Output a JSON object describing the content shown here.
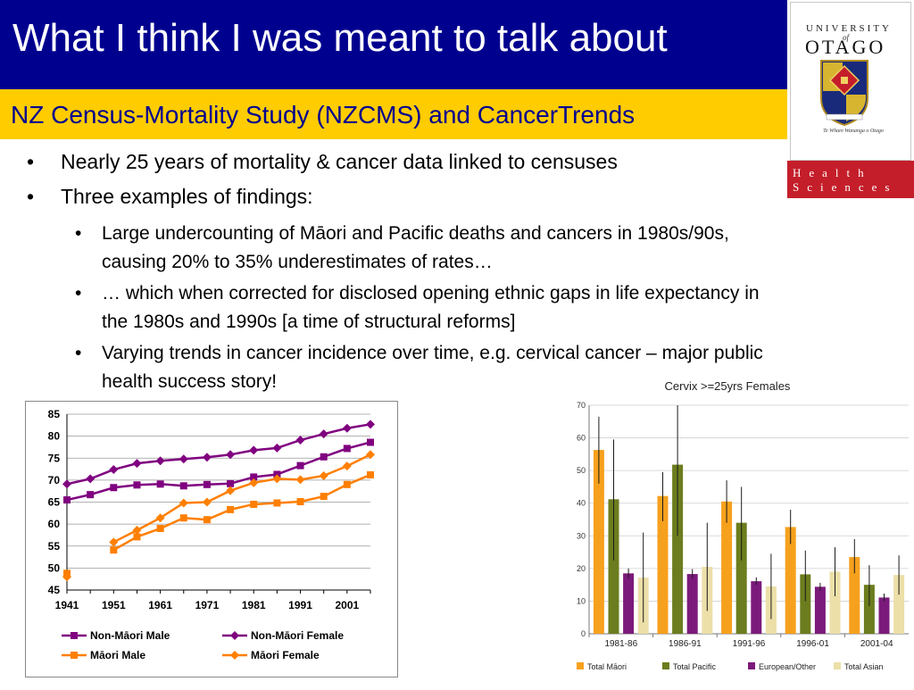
{
  "slide": {
    "title": "What I think I was meant to talk about",
    "subtitle": "NZ Census-Mortality Study (NZCMS) and CancerTrends",
    "bullets": [
      "Nearly 25 years of mortality & cancer data linked to censuses",
      "Three examples of findings:"
    ],
    "sub_bullets": [
      "Large undercounting of Māori and Pacific deaths and cancers in 1980s/90s, causing 20% to 35% underestimates of rates…",
      "… which when corrected for disclosed opening ethnic gaps in life expectancy in the 1980s and 1990s [a time of structural reforms]",
      "Varying trends in cancer incidence over time, e.g. cervical cancer – major public health success story!"
    ],
    "bullet_glyph": "•"
  },
  "logo": {
    "university": "UNIVERSITY",
    "of": "of",
    "otago": "OTAGO",
    "motto": "Te Whare Wananga o Otago",
    "health": "Health",
    "sciences": "Sciences",
    "red": "#c41e2a"
  },
  "colors": {
    "title_bg": "#00008f",
    "subtitle_bg": "#ffcc00",
    "non_maori": "#800080",
    "maori": "#ff7f00",
    "total_maori": "#f6a11d",
    "total_pacific": "#6b7d1e",
    "european": "#7b1a7b",
    "total_asian": "#ecdfa8"
  },
  "chart_data": [
    {
      "type": "line",
      "title": "",
      "xlabel": "",
      "ylabel": "",
      "x": [
        1941,
        1946,
        1951,
        1956,
        1961,
        1966,
        1971,
        1976,
        1981,
        1986,
        1991,
        1996,
        2001,
        2006
      ],
      "x_ticks": [
        "1941",
        "1951",
        "1961",
        "1971",
        "1981",
        "1991",
        "2001"
      ],
      "y_ticks": [
        "45",
        "50",
        "55",
        "60",
        "65",
        "70",
        "75",
        "80",
        "85"
      ],
      "ylim": [
        45,
        85
      ],
      "grid": true,
      "legend_position": "bottom",
      "series": [
        {
          "name": "Non-Māori Male",
          "marker": "square",
          "color": "#800080",
          "values": [
            65.5,
            66.7,
            68.3,
            68.9,
            69.1,
            68.7,
            69.0,
            69.2,
            70.7,
            71.3,
            73.3,
            75.3,
            77.2,
            78.6
          ]
        },
        {
          "name": "Non-Māori Female",
          "marker": "diamond",
          "color": "#800080",
          "values": [
            69.1,
            70.3,
            72.4,
            73.8,
            74.4,
            74.8,
            75.2,
            75.8,
            76.8,
            77.3,
            79.1,
            80.5,
            81.8,
            82.7
          ]
        },
        {
          "name": "Māori  Male",
          "marker": "square",
          "color": "#ff7f00",
          "values": [
            48.8,
            null,
            54.1,
            57.1,
            59.0,
            61.4,
            61.0,
            63.3,
            64.5,
            64.8,
            65.1,
            66.3,
            69.0,
            71.2
          ]
        },
        {
          "name": "Māori  Female",
          "marker": "diamond",
          "color": "#ff7f00",
          "values": [
            48.0,
            null,
            55.9,
            58.6,
            61.4,
            64.8,
            65.0,
            67.6,
            69.4,
            70.3,
            70.1,
            71.0,
            73.2,
            75.8
          ]
        }
      ]
    },
    {
      "type": "bar",
      "title": "Cervix   >=25yrs   Females",
      "xlabel": "",
      "ylabel": "",
      "categories": [
        "1981-86",
        "1986-91",
        "1991-96",
        "1996-01",
        "2001-04"
      ],
      "y_ticks": [
        "0",
        "10",
        "20",
        "30",
        "40",
        "50",
        "60",
        "70"
      ],
      "ylim": [
        0,
        70
      ],
      "grid": true,
      "legend_position": "bottom",
      "series": [
        {
          "name": "Total Māori",
          "color": "#f6a11d",
          "values": [
            56.3,
            42.2,
            40.5,
            32.7,
            23.5
          ],
          "error_low": [
            46.0,
            34.5,
            34.0,
            27.5,
            18.5
          ],
          "error_high": [
            66.5,
            49.5,
            47.0,
            38.0,
            29.0
          ]
        },
        {
          "name": "Total Pacific",
          "color": "#6b7d1e",
          "values": [
            41.2,
            51.8,
            34.0,
            18.2,
            15.0
          ],
          "error_low": [
            22.5,
            30.0,
            22.5,
            10.0,
            8.5
          ],
          "error_high": [
            59.5,
            70.0,
            45.0,
            25.5,
            21.0
          ]
        },
        {
          "name": "European/Other",
          "color": "#7b1a7b",
          "values": [
            18.5,
            18.3,
            16.1,
            14.4,
            11.1
          ],
          "error_low": [
            17.0,
            17.0,
            15.0,
            13.2,
            10.0
          ],
          "error_high": [
            20.0,
            19.8,
            17.3,
            15.6,
            12.3
          ]
        },
        {
          "name": "Total Asian",
          "color": "#ecdfa8",
          "values": [
            17.2,
            20.5,
            14.5,
            19.0,
            18.0
          ],
          "error_low": [
            3.5,
            7.0,
            4.5,
            11.5,
            12.0
          ],
          "error_high": [
            31.0,
            34.0,
            24.5,
            26.5,
            24.0
          ]
        }
      ]
    }
  ]
}
